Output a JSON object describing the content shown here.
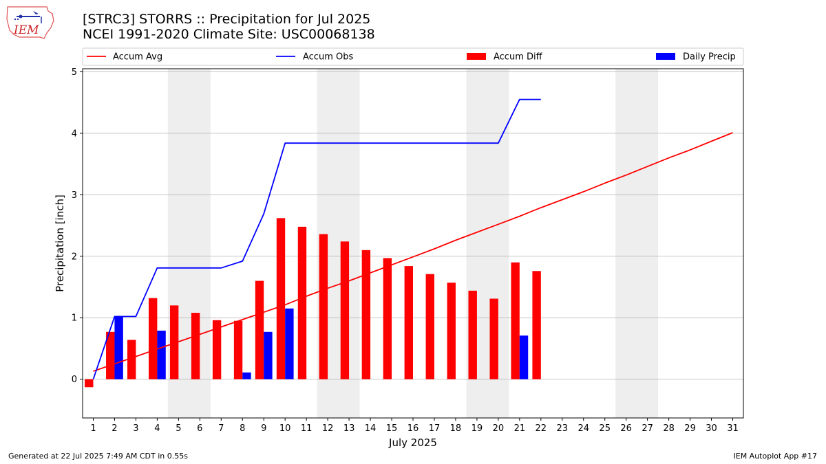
{
  "title_line1": "[STRC3] STORRS :: Precipitation for Jul 2025",
  "title_line2": "NCEI 1991-2020 Climate Site: USC00068138",
  "logo_text": "IEM",
  "footer_left": "Generated at 22 Jul 2025 7:49 AM CDT in 0.55s",
  "footer_right": "IEM Autoplot App #17",
  "legend": {
    "accum_avg": "Accum Avg",
    "accum_obs": "Accum Obs",
    "accum_diff": "Accum Diff",
    "daily_precip": "Daily Precip"
  },
  "colors": {
    "accum_avg": "#ff0000",
    "accum_obs": "#0000ff",
    "accum_diff": "#ff0000",
    "daily_precip": "#0000ff",
    "weekend_shade": "#eeeeee",
    "grid": "#b0b0b0"
  },
  "chart_data": {
    "type": "bar",
    "xlabel": "July 2025",
    "ylabel": "Precipitation [inch]",
    "xlim": [
      0.5,
      31.5
    ],
    "ylim": [
      -0.63,
      5.05
    ],
    "yticks": [
      0,
      1,
      2,
      3,
      4,
      5
    ],
    "grid": "horizontal",
    "legend_placement": "top",
    "days": [
      1,
      2,
      3,
      4,
      5,
      6,
      7,
      8,
      9,
      10,
      11,
      12,
      13,
      14,
      15,
      16,
      17,
      18,
      19,
      20,
      21,
      22,
      23,
      24,
      25,
      26,
      27,
      28,
      29,
      30,
      31
    ],
    "weekend_shading": [
      [
        4.5,
        6.5
      ],
      [
        11.5,
        13.5
      ],
      [
        18.5,
        20.5
      ],
      [
        25.5,
        27.5
      ]
    ],
    "series": [
      {
        "name": "Accum Avg",
        "kind": "line",
        "x": [
          1,
          2,
          3,
          4,
          5,
          6,
          7,
          8,
          9,
          10,
          11,
          12,
          13,
          14,
          15,
          16,
          17,
          18,
          19,
          20,
          21,
          22,
          23,
          24,
          25,
          26,
          27,
          28,
          29,
          30,
          31
        ],
        "values": [
          0.13,
          0.25,
          0.37,
          0.49,
          0.61,
          0.73,
          0.85,
          0.97,
          1.09,
          1.21,
          1.35,
          1.48,
          1.6,
          1.73,
          1.86,
          1.99,
          2.12,
          2.26,
          2.39,
          2.52,
          2.65,
          2.79,
          2.92,
          3.05,
          3.19,
          3.32,
          3.46,
          3.6,
          3.73,
          3.87,
          4.01
        ]
      },
      {
        "name": "Accum Obs",
        "kind": "line",
        "x": [
          1,
          2,
          3,
          4,
          5,
          6,
          7,
          8,
          9,
          10,
          11,
          12,
          13,
          14,
          15,
          16,
          17,
          18,
          19,
          20,
          21,
          22
        ],
        "values": [
          0.0,
          1.02,
          1.02,
          1.81,
          1.81,
          1.81,
          1.81,
          1.92,
          2.69,
          3.84,
          3.84,
          3.84,
          3.84,
          3.84,
          3.84,
          3.84,
          3.84,
          3.84,
          3.84,
          3.84,
          4.55,
          4.55
        ]
      },
      {
        "name": "Accum Diff",
        "kind": "bar",
        "x": [
          1,
          2,
          3,
          4,
          5,
          6,
          7,
          8,
          9,
          10,
          11,
          12,
          13,
          14,
          15,
          16,
          17,
          18,
          19,
          20,
          21,
          22
        ],
        "values": [
          -0.13,
          0.77,
          0.64,
          1.32,
          1.2,
          1.08,
          0.96,
          0.95,
          1.6,
          2.62,
          2.48,
          2.36,
          2.24,
          2.1,
          1.97,
          1.84,
          1.71,
          1.57,
          1.44,
          1.31,
          1.9,
          1.76
        ]
      },
      {
        "name": "Daily Precip",
        "kind": "bar",
        "x": [
          2,
          4,
          8,
          9,
          10,
          21
        ],
        "values": [
          1.02,
          0.79,
          0.11,
          0.77,
          1.15,
          0.71
        ]
      }
    ]
  }
}
